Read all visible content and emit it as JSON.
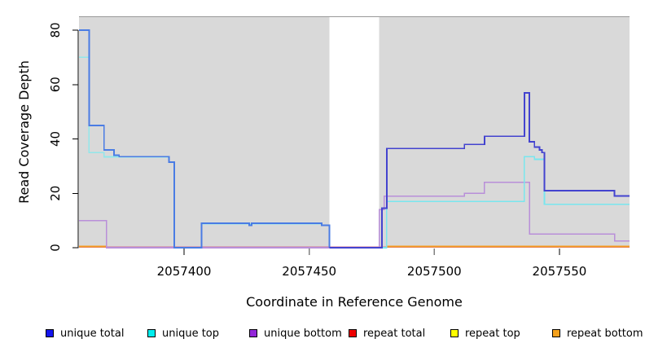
{
  "figure": {
    "kind": "read-coverage-plot",
    "background": "#ffffff"
  },
  "titles": {
    "x_axis": "Coordinate in Reference Genome",
    "y_axis": "Read Coverage Depth"
  },
  "legend": {
    "items": [
      {
        "label": "unique total",
        "swatch_color": "#1414ee"
      },
      {
        "label": "unique top",
        "swatch_color": "#00eeee"
      },
      {
        "label": "unique bottom",
        "swatch_color": "#9326d9"
      },
      {
        "label": "repeat total",
        "swatch_color": "#ee0000"
      },
      {
        "label": "repeat top",
        "swatch_color": "#ffff00"
      },
      {
        "label": "repeat bottom",
        "swatch_color": "#f5a11c"
      }
    ]
  },
  "chart_data": {
    "type": "line",
    "step": true,
    "title": "",
    "xlabel": "Coordinate in Reference Genome",
    "ylabel": "Read Coverage Depth",
    "xlim": [
      2057358,
      2057578
    ],
    "ylim": [
      0,
      85
    ],
    "x_ticks": [
      2057400,
      2057450,
      2057500,
      2057550
    ],
    "y_ticks": [
      0,
      20,
      40,
      60,
      80
    ],
    "panel_color": "#d9d9d9",
    "panel_top_line_color": "#999999",
    "axis_color": "#000000",
    "x_tick_color": "#808080",
    "shaded_regions": [
      {
        "name": "left-alignment-block",
        "from": 2057358,
        "to": 2057458
      },
      {
        "name": "right-alignment-block",
        "from": 2057478,
        "to": 2057578
      }
    ],
    "gap_region": {
      "from": 2057458,
      "to": 2057478
    },
    "series": [
      {
        "name": "repeat-total",
        "label": "repeat total",
        "segments": [
          {
            "color": "#d4708d",
            "width": 1.6,
            "points": [
              [
                2057358,
                0.2
              ],
              [
                2057578,
                0.2
              ]
            ]
          }
        ]
      },
      {
        "name": "repeat-top",
        "label": "repeat top",
        "segments": [
          {
            "color": "#f0e400",
            "width": 1.6,
            "points": [
              [
                2057358,
                0.4
              ],
              [
                2057369,
                0.4
              ]
            ]
          },
          {
            "color": "#f0e400",
            "width": 1.6,
            "points": [
              [
                2057481,
                0.4
              ],
              [
                2057578,
                0.4
              ]
            ]
          }
        ]
      },
      {
        "name": "repeat-bottom",
        "label": "repeat bottom",
        "segments": [
          {
            "color": "#f59c20",
            "width": 2,
            "points": [
              [
                2057358,
                0.5
              ],
              [
                2057369,
                0.5
              ]
            ]
          },
          {
            "color": "#f59c20",
            "width": 2,
            "points": [
              [
                2057481,
                0.5
              ],
              [
                2057578,
                0.5
              ]
            ]
          }
        ]
      },
      {
        "name": "unique-bottom",
        "label": "unique bottom",
        "segments": [
          {
            "color": "#b98fd9",
            "width": 1.6,
            "points": [
              [
                2057358,
                10
              ],
              [
                2057369,
                0
              ],
              [
                2057478,
                14
              ],
              [
                2057480,
                19
              ],
              [
                2057512,
                20
              ],
              [
                2057520,
                24
              ],
              [
                2057538,
                5
              ],
              [
                2057572,
                2.5
              ],
              [
                2057578,
                2.5
              ]
            ]
          }
        ]
      },
      {
        "name": "unique-top",
        "label": "unique top",
        "segments": [
          {
            "color": "#92e7ea",
            "width": 1.6,
            "points": [
              [
                2057358,
                70
              ],
              [
                2057362,
                35
              ],
              [
                2057368,
                33.4
              ],
              [
                2057394,
                31.4
              ],
              [
                2057396,
                0
              ],
              [
                2057407,
                8.8
              ],
              [
                2057455,
                8.2
              ],
              [
                2057458,
                0
              ]
            ]
          },
          {
            "color": "#79e6ee",
            "width": 1.6,
            "points": [
              [
                2057458,
                0
              ],
              [
                2057481,
                17
              ],
              [
                2057536,
                33.5
              ],
              [
                2057540,
                32.5
              ],
              [
                2057544,
                16
              ],
              [
                2057578,
                16
              ]
            ]
          }
        ]
      },
      {
        "name": "unique-total",
        "label": "unique total",
        "segments": [
          {
            "color": "#4a7ce4",
            "width": 1.9,
            "points": [
              [
                2057358,
                80
              ],
              [
                2057362,
                45
              ],
              [
                2057368,
                36
              ],
              [
                2057372,
                34
              ],
              [
                2057374,
                33.5
              ],
              [
                2057394,
                31.5
              ],
              [
                2057396,
                0
              ],
              [
                2057407,
                9
              ],
              [
                2057426,
                8.3
              ],
              [
                2057427,
                9
              ],
              [
                2057455,
                8.3
              ],
              [
                2057458,
                0
              ]
            ]
          },
          {
            "color": "#4343cf",
            "width": 1.9,
            "points": [
              [
                2057458,
                0
              ],
              [
                2057479,
                14.5
              ],
              [
                2057481,
                36.5
              ],
              [
                2057512,
                38
              ],
              [
                2057520,
                41
              ],
              [
                2057536,
                57
              ],
              [
                2057538,
                39
              ],
              [
                2057540,
                37
              ],
              [
                2057542,
                36
              ],
              [
                2057543,
                35
              ],
              [
                2057544,
                21
              ],
              [
                2057572,
                19
              ],
              [
                2057578,
                19
              ]
            ]
          }
        ]
      }
    ]
  }
}
